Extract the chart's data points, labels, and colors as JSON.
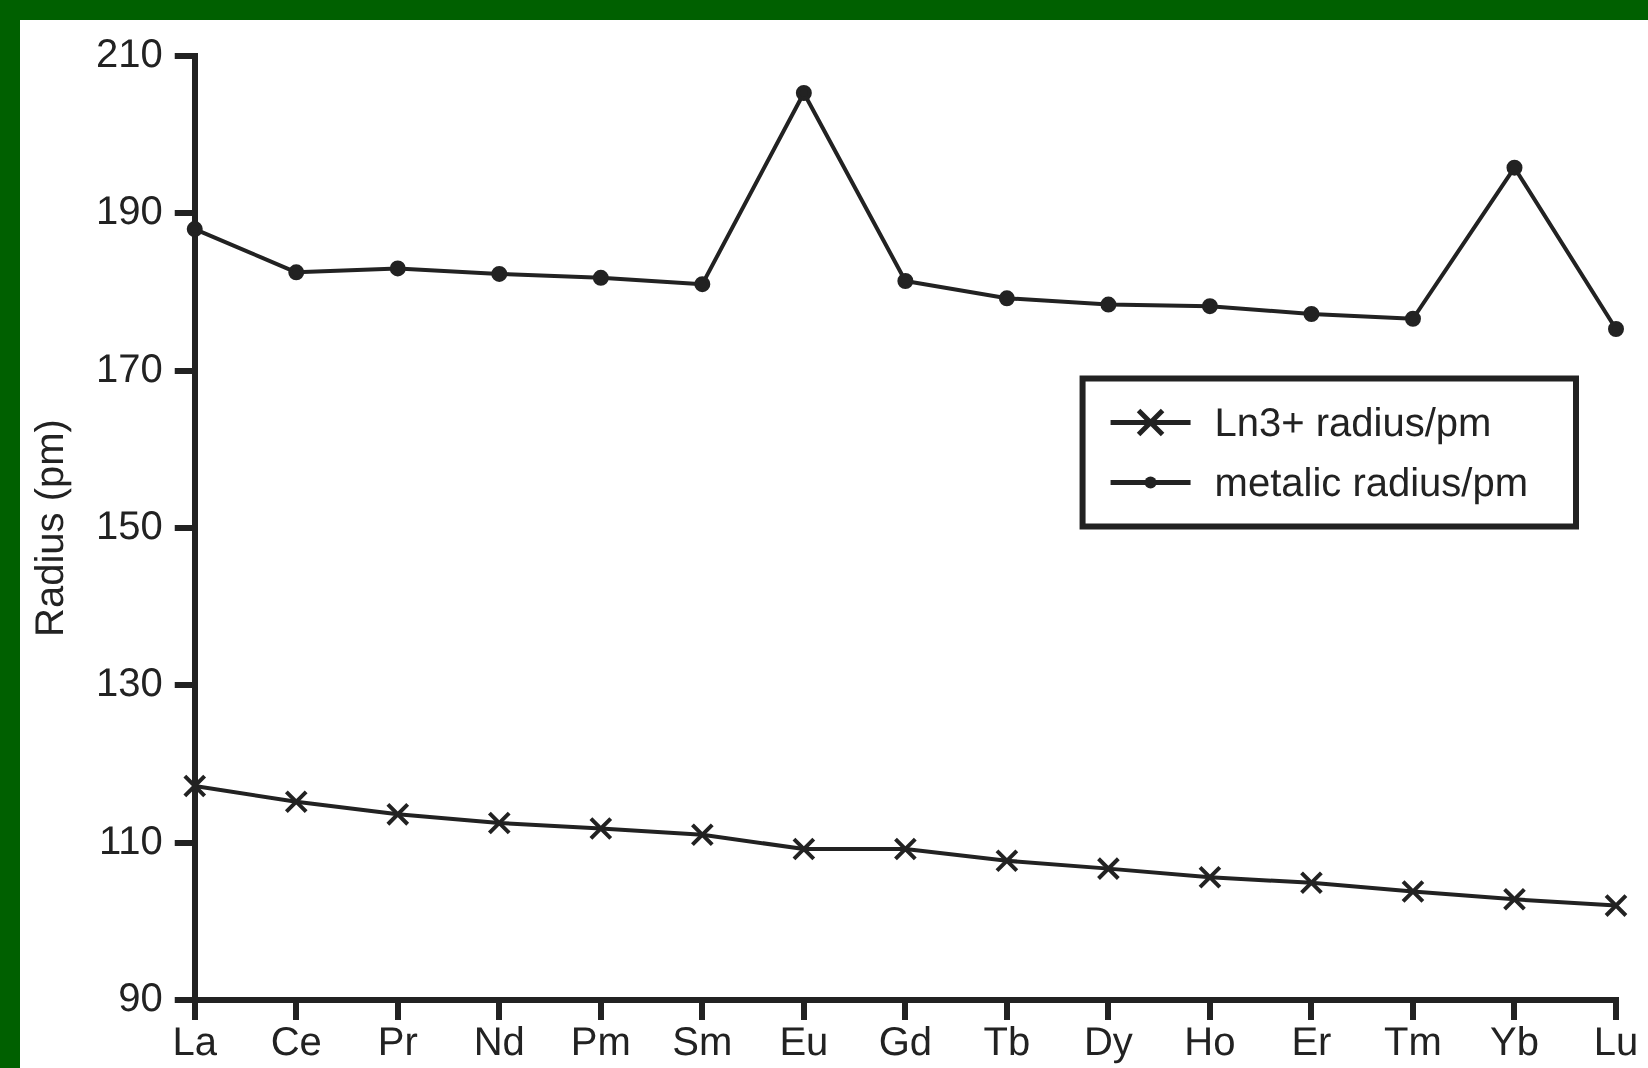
{
  "chart_data": {
    "type": "line",
    "ylabel": "Radius (pm)",
    "categories": [
      "La",
      "Ce",
      "Pr",
      "Nd",
      "Pm",
      "Sm",
      "Eu",
      "Gd",
      "Tb",
      "Dy",
      "Ho",
      "Er",
      "Tm",
      "Yb",
      "Lu"
    ],
    "series": [
      {
        "name": "Ln3+ radius/pm",
        "color": "#222222",
        "marker": "cross",
        "values": [
          117.2,
          115.2,
          113.6,
          112.5,
          111.8,
          111,
          109.2,
          109.2,
          107.7,
          106.7,
          105.6,
          104.9,
          103.8,
          102.8,
          102
        ]
      },
      {
        "name": "metalic radius/pm",
        "color": "#222222",
        "marker": "circle",
        "values": [
          188,
          182.5,
          183,
          182.3,
          181.8,
          181,
          205.3,
          181.4,
          179.2,
          178.4,
          178.2,
          177.2,
          176.6,
          195.8,
          175.3
        ]
      }
    ],
    "ylim": [
      90,
      210
    ],
    "yticks": [
      90,
      110,
      130,
      150,
      170,
      190,
      210
    ],
    "grid": false,
    "legend": "right",
    "line_style": "solid"
  }
}
